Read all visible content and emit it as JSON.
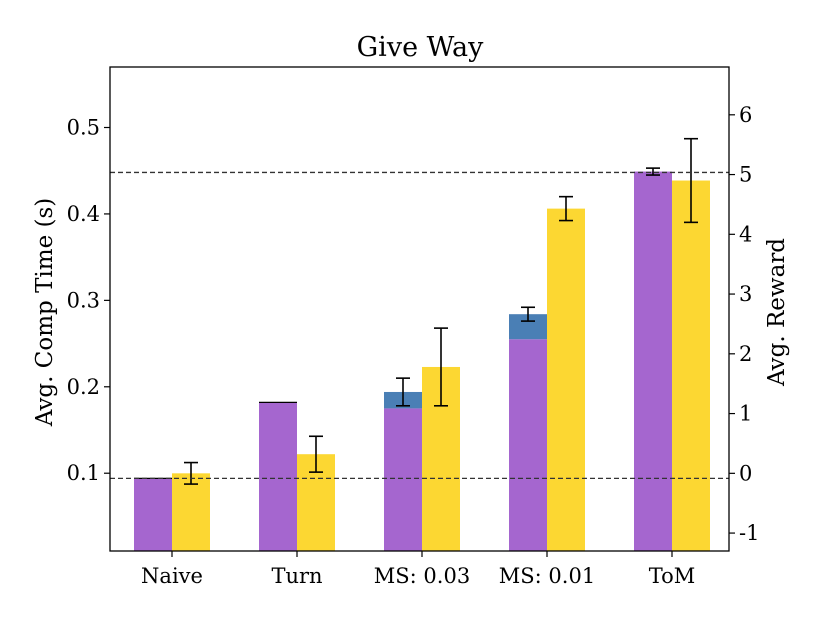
{
  "chart_data": {
    "type": "bar",
    "title": "Give Way",
    "categories": [
      "Naive",
      "Turn",
      "MS: 0.03",
      "MS: 0.01",
      "ToM"
    ],
    "y_left": {
      "label": "Avg. Comp Time (s)",
      "lim": [
        0.01,
        0.57
      ],
      "ticks": [
        0.1,
        0.2,
        0.3,
        0.4,
        0.5
      ],
      "tick_labels": [
        "0.1",
        "0.2",
        "0.3",
        "0.4",
        "0.5"
      ]
    },
    "y_right": {
      "label": "Avg. Reward",
      "lim": [
        -1.3,
        6.8
      ],
      "ticks": [
        -1,
        0,
        1,
        2,
        3,
        4,
        5,
        6
      ],
      "tick_labels": [
        "-1",
        "0",
        "1",
        "2",
        "3",
        "4",
        "5",
        "6"
      ]
    },
    "series": [
      {
        "axis": "left",
        "color": "#a566cf",
        "stack_color": "#4a7fb5",
        "total": [
          0.094,
          0.182,
          0.194,
          0.284,
          0.449
        ],
        "base": [
          0.094,
          0.182,
          0.175,
          0.255,
          0.449
        ],
        "error": [
          0.0,
          0.0,
          0.016,
          0.008,
          0.004
        ]
      },
      {
        "axis": "right",
        "color": "#fcd732",
        "values": [
          0.0,
          0.32,
          1.78,
          4.43,
          4.9
        ],
        "error": [
          0.18,
          0.3,
          0.65,
          0.2,
          0.7
        ]
      }
    ],
    "reference_lines": [
      {
        "axis": "left",
        "value": 0.094,
        "style": "dashed"
      },
      {
        "axis": "left",
        "value": 0.448,
        "style": "dashed"
      }
    ],
    "grid": false
  }
}
